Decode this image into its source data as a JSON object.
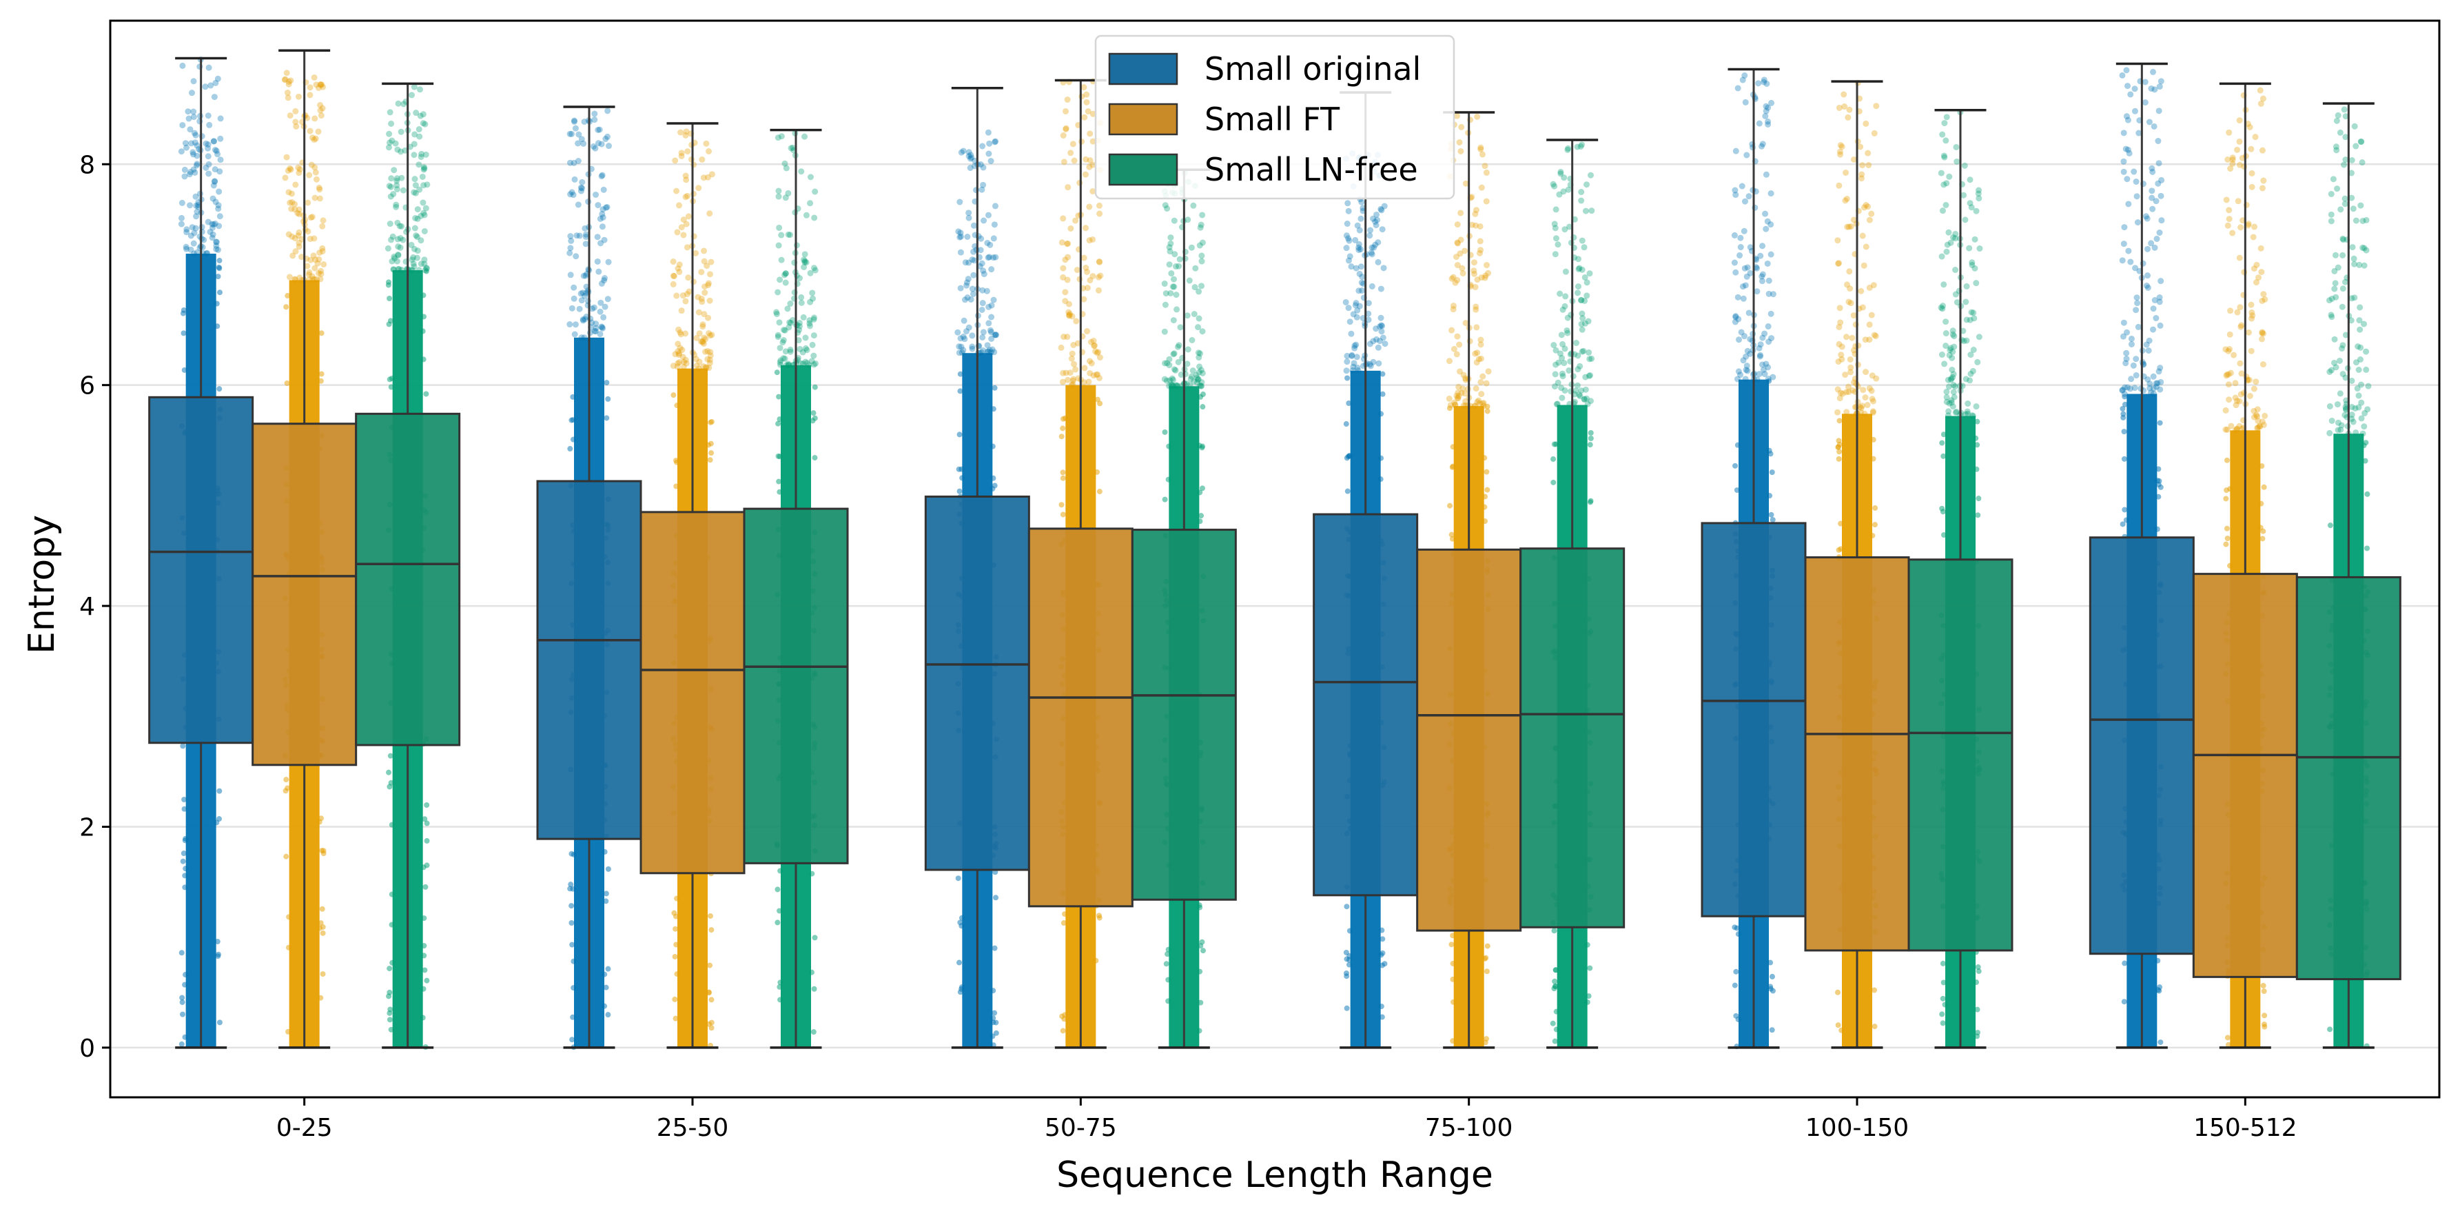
{
  "chart_data": {
    "type": "box",
    "xlabel": "Sequence Length Range",
    "ylabel": "Entropy",
    "categories": [
      "0-25",
      "25-50",
      "50-75",
      "75-100",
      "100-150",
      "150-512"
    ],
    "y_ticks": [
      0,
      2,
      4,
      6,
      8
    ],
    "ylim": [
      -0.45,
      9.3
    ],
    "grid": "horizontal",
    "legend_position": "top-center",
    "series": [
      {
        "name": "Small original",
        "box_color": "#1a6d9e",
        "point_color": "#0072b2",
        "boxes": [
          {
            "min": 0,
            "q1": 2.76,
            "median": 4.49,
            "q3": 5.89,
            "max": 8.96,
            "points_max": 8.96
          },
          {
            "min": 0,
            "q1": 1.89,
            "median": 3.69,
            "q3": 5.13,
            "max": 8.52,
            "points_max": 8.52
          },
          {
            "min": 0,
            "q1": 1.61,
            "median": 3.47,
            "q3": 4.99,
            "max": 8.69,
            "points_max": 8.3
          },
          {
            "min": 0,
            "q1": 1.38,
            "median": 3.31,
            "q3": 4.83,
            "max": 8.65,
            "points_max": 8.1
          },
          {
            "min": 0,
            "q1": 1.19,
            "median": 3.14,
            "q3": 4.75,
            "max": 8.86,
            "points_max": 8.86
          },
          {
            "min": 0,
            "q1": 0.85,
            "median": 2.97,
            "q3": 4.62,
            "max": 8.91,
            "points_max": 8.91
          }
        ]
      },
      {
        "name": "Small FT",
        "box_color": "#c98a28",
        "point_color": "#e69f00",
        "boxes": [
          {
            "min": 0,
            "q1": 2.56,
            "median": 4.27,
            "q3": 5.65,
            "max": 9.03,
            "points_max": 8.85
          },
          {
            "min": 0,
            "q1": 1.58,
            "median": 3.42,
            "q3": 4.85,
            "max": 8.37,
            "points_max": 8.37
          },
          {
            "min": 0,
            "q1": 1.28,
            "median": 3.17,
            "q3": 4.7,
            "max": 8.76,
            "points_max": 8.76
          },
          {
            "min": 0,
            "q1": 1.06,
            "median": 3.01,
            "q3": 4.51,
            "max": 8.47,
            "points_max": 8.47
          },
          {
            "min": 0,
            "q1": 0.88,
            "median": 2.84,
            "q3": 4.44,
            "max": 8.75,
            "points_max": 8.75
          },
          {
            "min": 0,
            "q1": 0.64,
            "median": 2.65,
            "q3": 4.29,
            "max": 8.73,
            "points_max": 8.73
          }
        ]
      },
      {
        "name": "Small LN-free",
        "box_color": "#178e6a",
        "point_color": "#009e73",
        "boxes": [
          {
            "min": 0,
            "q1": 2.74,
            "median": 4.38,
            "q3": 5.74,
            "max": 8.73,
            "points_max": 8.73
          },
          {
            "min": 0,
            "q1": 1.67,
            "median": 3.45,
            "q3": 4.88,
            "max": 8.31,
            "points_max": 8.31
          },
          {
            "min": 0,
            "q1": 1.34,
            "median": 3.19,
            "q3": 4.69,
            "max": 7.95,
            "points_max": 7.95
          },
          {
            "min": 0,
            "q1": 1.09,
            "median": 3.02,
            "q3": 4.52,
            "max": 8.22,
            "points_max": 8.22
          },
          {
            "min": 0,
            "q1": 0.88,
            "median": 2.85,
            "q3": 4.42,
            "max": 8.49,
            "points_max": 8.49
          },
          {
            "min": 0,
            "q1": 0.62,
            "median": 2.63,
            "q3": 4.26,
            "max": 8.55,
            "points_max": 8.55
          }
        ]
      }
    ]
  }
}
